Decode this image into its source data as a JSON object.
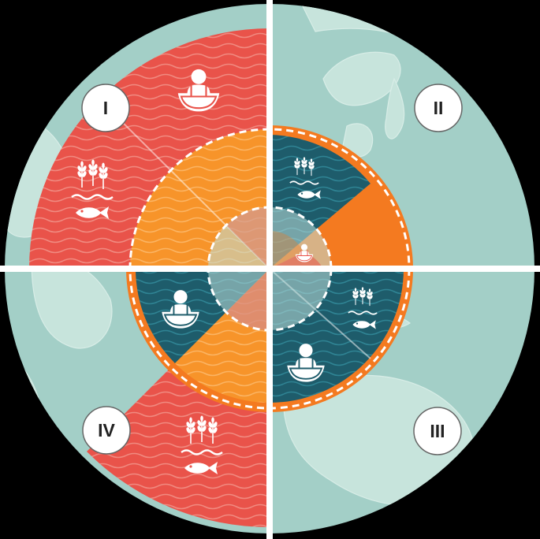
{
  "quadrants": [
    {
      "id": "I",
      "label": "I"
    },
    {
      "id": "II",
      "label": "II"
    },
    {
      "id": "III",
      "label": "III"
    },
    {
      "id": "IV",
      "label": "IV"
    }
  ],
  "colors": {
    "ocean": "#a3cfc7",
    "land": "#c7e4dc",
    "red": "#e9534a",
    "orange": "#f7942a",
    "orange_band": "#f47a20",
    "teal": "#1e5c6b",
    "white": "#ffffff"
  },
  "icons": [
    "person-eating-icon",
    "wheat-icon",
    "water-waves-icon",
    "fish-icon"
  ]
}
